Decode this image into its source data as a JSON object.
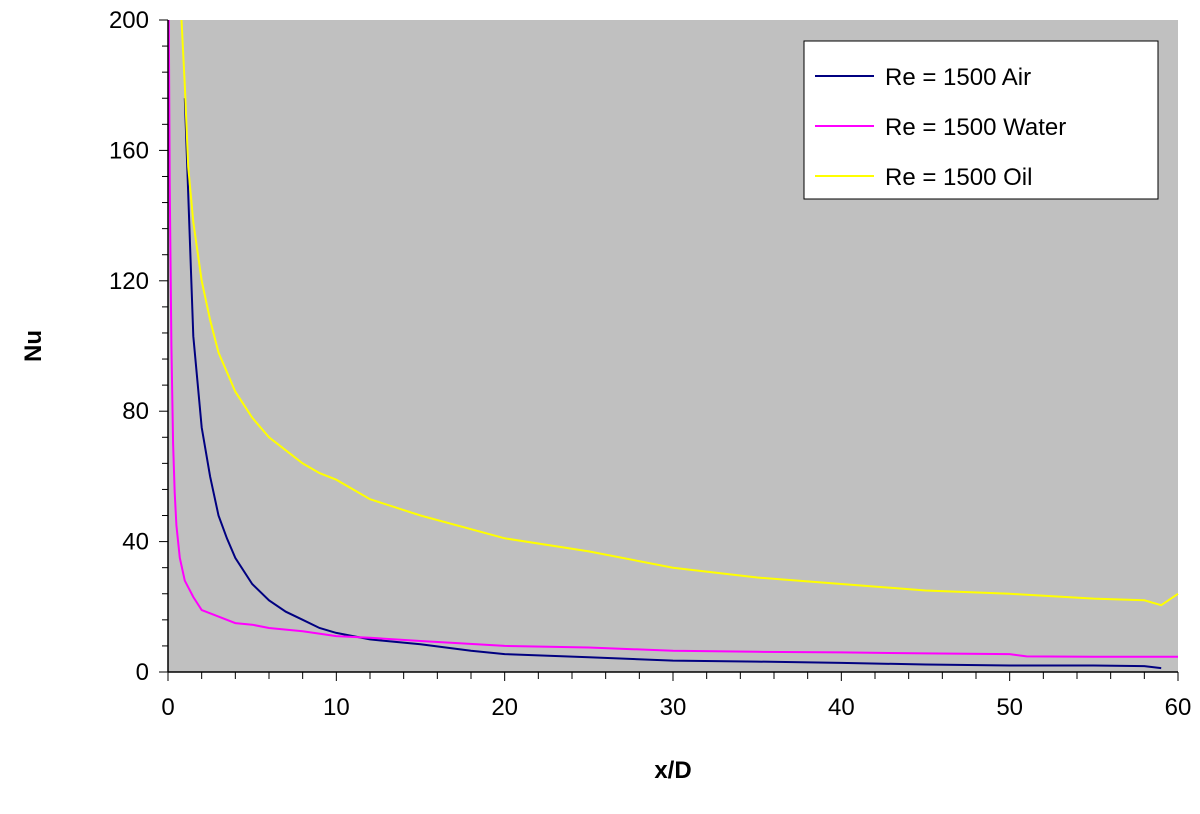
{
  "chart_data": {
    "type": "line",
    "title": "",
    "xlabel": "x/D",
    "ylabel": "Nu",
    "xlim": [
      0,
      60
    ],
    "ylim": [
      0,
      200
    ],
    "x_ticks": [
      "0",
      "10",
      "20",
      "30",
      "40",
      "50",
      "60"
    ],
    "y_ticks": [
      "0",
      "40",
      "80",
      "120",
      "160",
      "200"
    ],
    "grid": false,
    "plot_background": "#C0C0C0",
    "legend_position": "top-right",
    "series": [
      {
        "name": "Re = 1500 Air",
        "color": "#000080",
        "x": [
          1,
          1.5,
          2,
          2.5,
          3,
          3.5,
          4,
          5,
          6,
          7,
          8,
          9,
          10,
          12,
          15,
          18,
          20,
          25,
          30,
          35,
          40,
          45,
          50,
          55,
          58,
          59
        ],
        "y": [
          176,
          103,
          75,
          60,
          48,
          41,
          35,
          27,
          22,
          18.5,
          16,
          13.5,
          12,
          10,
          8.5,
          6.5,
          5.5,
          4.5,
          3.5,
          3.2,
          2.8,
          2.3,
          2,
          2,
          1.8,
          1.2
        ]
      },
      {
        "name": "Re = 1500 Water",
        "color": "#FF00FF",
        "x": [
          0.05,
          0.1,
          0.2,
          0.3,
          0.4,
          0.5,
          0.7,
          1,
          1.5,
          2,
          3,
          4,
          5,
          6,
          8,
          10,
          12,
          15,
          20,
          25,
          30,
          35,
          40,
          45,
          50,
          51,
          55,
          60
        ],
        "y": [
          200,
          150,
          100,
          70,
          55,
          45,
          35,
          28,
          23,
          19,
          17,
          15,
          14.5,
          13.5,
          12.5,
          11,
          10.5,
          9.5,
          8,
          7.5,
          6.5,
          6.2,
          6,
          5.7,
          5.5,
          4.8,
          4.7,
          4.7
        ]
      },
      {
        "name": "Re = 1500 Oil",
        "color": "#FFFF00",
        "x": [
          0.8,
          1,
          1.2,
          1.5,
          2,
          2.5,
          3,
          4,
          5,
          6,
          7,
          8,
          9,
          10,
          12,
          15,
          20,
          25,
          30,
          35,
          40,
          45,
          50,
          55,
          58,
          59,
          60
        ],
        "y": [
          200,
          180,
          155,
          138,
          120,
          108,
          98,
          86,
          78,
          72,
          68,
          64,
          61,
          59,
          53,
          48,
          41,
          37,
          32,
          29,
          27,
          25,
          24,
          22.5,
          22,
          20.5,
          24
        ]
      }
    ]
  }
}
